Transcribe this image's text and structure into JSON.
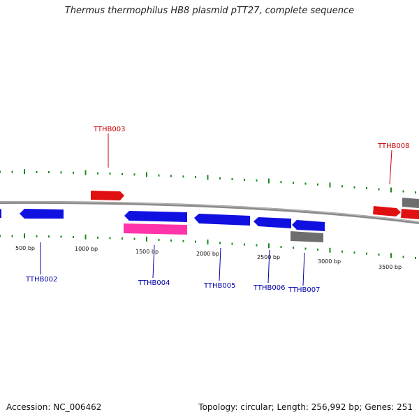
{
  "title": "Thermus thermophilus HB8 plasmid pTT27, complete sequence",
  "footer": {
    "accession": "Accession: NC_006462",
    "summary": "Topology: circular; Length: 256,992 bp; Genes: 251"
  },
  "colors": {
    "forward_gene": "#e01010",
    "reverse_gene": "#1010e0",
    "rna_gene": "#ff33aa",
    "other_gene": "#6e6e6e",
    "tick": "#1a8a1a",
    "backbone": "#8a8a8a",
    "label_forward": "#cc0000",
    "label_reverse": "#0000aa"
  },
  "scale_labels": [
    "500 bp",
    "1000 bp",
    "1500 bp",
    "2000 bp",
    "2500 bp",
    "3000 bp",
    "3500 bp"
  ],
  "gene_labels": [
    {
      "text": "TTHB003",
      "strand": "forward"
    },
    {
      "text": "TTHB008",
      "strand": "forward"
    },
    {
      "text": "TTHB002",
      "strand": "reverse"
    },
    {
      "text": "TTHB004",
      "strand": "reverse"
    },
    {
      "text": "TTHB005",
      "strand": "reverse"
    },
    {
      "text": "TTHB006",
      "strand": "reverse"
    },
    {
      "text": "TTHB007",
      "strand": "reverse"
    }
  ]
}
